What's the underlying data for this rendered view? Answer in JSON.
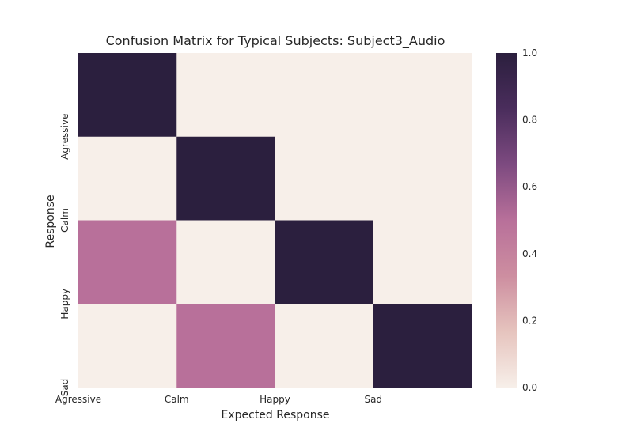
{
  "chart_data": {
    "type": "heatmap",
    "title": "Confusion Matrix for Typical Subjects: Subject3_Audio",
    "xlabel": "Expected Response",
    "ylabel": "Response",
    "x_tick_labels": [
      "Agressive",
      "Calm",
      "Happy",
      "Sad"
    ],
    "y_tick_labels": [
      "Agressive",
      "Calm",
      "Happy",
      "Sad"
    ],
    "matrix": [
      [
        1.0,
        0.0,
        0.0,
        0.0
      ],
      [
        0.0,
        1.0,
        0.0,
        0.0
      ],
      [
        0.5,
        0.0,
        1.0,
        0.0
      ],
      [
        0.0,
        0.5,
        0.0,
        1.0
      ]
    ],
    "colorbar": {
      "range": [
        0.0,
        1.0
      ],
      "ticks": [
        "0.0",
        "0.2",
        "0.4",
        "0.6",
        "0.8",
        "1.0"
      ],
      "colormap": [
        "#f7efe9",
        "#e6c4be",
        "#cd8ea0",
        "#b8709a",
        "#7d4a80",
        "#4a2d5c",
        "#2b1f3e"
      ]
    }
  }
}
